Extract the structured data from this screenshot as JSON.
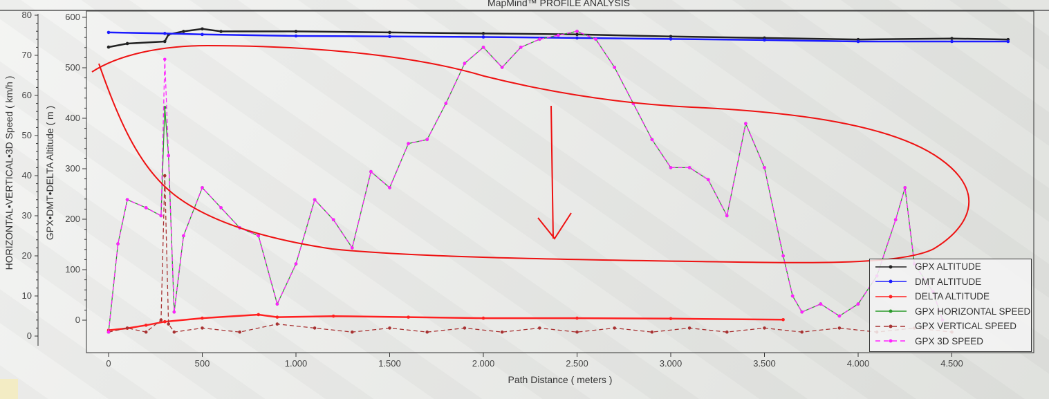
{
  "chart_data": {
    "type": "line",
    "title": "MapMind™ PROFILE ANALYSIS",
    "xlabel": "Path Distance ( meters )",
    "ylabel_left": "HORIZONTAL•VERTICAL•3D Speed ( km/h )",
    "ylabel_right": "GPX•DMT•DELTA Altitude ( m )",
    "xlim": [
      -120,
      4930
    ],
    "ylim_speed": [
      -3,
      82
    ],
    "ylim_altitude": [
      -65,
      620
    ],
    "x_ticks": [
      0,
      500,
      1000,
      1500,
      2000,
      2500,
      3000,
      3500,
      4000,
      4500
    ],
    "x_tick_labels": [
      "0",
      "500",
      "1.000",
      "1.500",
      "2.000",
      "2.500",
      "3.000",
      "3.500",
      "4.000",
      "4.500"
    ],
    "speed_ticks": [
      "0",
      "10",
      "20",
      "30",
      "40",
      "50",
      "60",
      "70",
      "80"
    ],
    "altitude_ticks": [
      "0",
      "100",
      "200",
      "300",
      "400",
      "500",
      "600"
    ],
    "legend_position": "bottom-right",
    "series": [
      {
        "name": "GPX ALTITUDE",
        "axis": "altitude",
        "color": "#222222",
        "dash": false,
        "x": [
          0,
          100,
          300,
          320,
          400,
          500,
          600,
          1000,
          1500,
          2000,
          2500,
          3000,
          3500,
          4000,
          4500,
          4800
        ],
        "values": [
          541,
          548,
          552,
          566,
          572,
          577,
          572,
          572,
          570,
          568,
          566,
          562,
          559,
          556,
          558,
          556
        ]
      },
      {
        "name": "DMT ALTITUDE",
        "axis": "altitude",
        "color": "#1a1aff",
        "dash": false,
        "x": [
          0,
          300,
          500,
          1000,
          1500,
          2000,
          2500,
          3000,
          3500,
          4000,
          4500,
          4800
        ],
        "values": [
          570,
          568,
          566,
          563,
          562,
          561,
          559,
          557,
          555,
          552,
          552,
          552
        ]
      },
      {
        "name": "DELTA ALTITUDE",
        "axis": "altitude",
        "color": "#ff2020",
        "dash": false,
        "x": [
          0,
          100,
          200,
          300,
          500,
          800,
          900,
          1200,
          1600,
          2000,
          2500,
          3000,
          3600
        ],
        "values": [
          -20,
          -16,
          -10,
          -3,
          4,
          11,
          6,
          8,
          6,
          4,
          4,
          3,
          1
        ]
      },
      {
        "name": "GPX HORIZONTAL SPEED",
        "axis": "speed",
        "color": "#2a9a2a",
        "dash": false,
        "x": [
          0,
          50,
          100,
          200,
          280,
          300,
          320,
          350,
          400,
          500,
          600,
          700,
          800,
          900,
          1000,
          1100,
          1200,
          1300,
          1400,
          1500,
          1600,
          1700,
          1800,
          1900,
          2000,
          2100,
          2200,
          2300,
          2400,
          2500,
          2600,
          2700,
          2800,
          2900,
          3000,
          3100,
          3200,
          3300,
          3400,
          3500,
          3600,
          3650,
          3700,
          3800,
          3900,
          4000,
          4100,
          4200,
          4250,
          4300,
          4400,
          4450
        ],
        "values": [
          1,
          23,
          34,
          32,
          30,
          57,
          45,
          6,
          25,
          37,
          32,
          27,
          25,
          8,
          18,
          34,
          29,
          22,
          41,
          37,
          48,
          49,
          58,
          68,
          72,
          67,
          72,
          74,
          75,
          76,
          74,
          67,
          58,
          49,
          42,
          42,
          39,
          30,
          53,
          42,
          20,
          10,
          6,
          8,
          5,
          8,
          15,
          29,
          37,
          18,
          11,
          4
        ]
      },
      {
        "name": "GPX VERTICAL SPEED",
        "axis": "speed",
        "color": "#a83232",
        "dash": true,
        "x": [
          0,
          100,
          200,
          280,
          300,
          320,
          350,
          500,
          700,
          900,
          1100,
          1300,
          1500,
          1700,
          1900,
          2100,
          2300,
          2500,
          2700,
          2900,
          3100,
          3300,
          3500,
          3700,
          3900,
          4100,
          4300,
          4500
        ],
        "values": [
          1,
          2,
          1,
          4,
          40,
          3,
          1,
          2,
          1,
          3,
          2,
          1,
          2,
          1,
          2,
          1,
          2,
          1,
          2,
          1,
          2,
          1,
          2,
          1,
          2,
          1,
          2,
          1
        ]
      },
      {
        "name": "GPX 3D SPEED",
        "axis": "speed",
        "color": "#ff20ff",
        "dash": true,
        "x": [
          0,
          50,
          100,
          200,
          280,
          300,
          320,
          350,
          400,
          500,
          600,
          700,
          800,
          900,
          1000,
          1100,
          1200,
          1300,
          1400,
          1500,
          1600,
          1700,
          1800,
          1900,
          2000,
          2100,
          2200,
          2300,
          2400,
          2500,
          2600,
          2700,
          2800,
          2900,
          3000,
          3100,
          3200,
          3300,
          3400,
          3500,
          3600,
          3650,
          3700,
          3800,
          3900,
          4000,
          4100,
          4200,
          4250,
          4300,
          4400,
          4450
        ],
        "values": [
          1,
          23,
          34,
          32,
          30,
          69,
          45,
          6,
          25,
          37,
          32,
          27,
          25,
          8,
          18,
          34,
          29,
          22,
          41,
          37,
          48,
          49,
          58,
          68,
          72,
          67,
          72,
          74,
          75,
          76,
          74,
          67,
          58,
          49,
          42,
          42,
          39,
          30,
          53,
          42,
          20,
          10,
          6,
          8,
          5,
          8,
          15,
          29,
          37,
          18,
          11,
          4
        ]
      }
    ]
  }
}
